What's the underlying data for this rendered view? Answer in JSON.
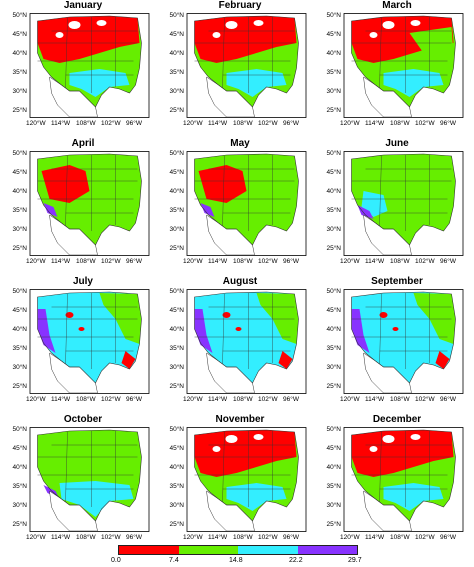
{
  "panels": [
    {
      "title": "January",
      "dominant": "red"
    },
    {
      "title": "February",
      "dominant": "red"
    },
    {
      "title": "March",
      "dominant": "red"
    },
    {
      "title": "April",
      "dominant": "green"
    },
    {
      "title": "May",
      "dominant": "green"
    },
    {
      "title": "June",
      "dominant": "green"
    },
    {
      "title": "July",
      "dominant": "cyan"
    },
    {
      "title": "August",
      "dominant": "cyan"
    },
    {
      "title": "September",
      "dominant": "cyan"
    },
    {
      "title": "October",
      "dominant": "green"
    },
    {
      "title": "November",
      "dominant": "red"
    },
    {
      "title": "December",
      "dominant": "red"
    }
  ],
  "lat_labels": [
    "50°N",
    "45°N",
    "40°N",
    "35°N",
    "30°N",
    "25°N"
  ],
  "lon_labels": [
    "120°W",
    "114°W",
    "108°W",
    "102°W",
    "96°W"
  ],
  "colorbar": {
    "colors": [
      "#ff0000",
      "#66ee00",
      "#33eeff",
      "#8833ff"
    ],
    "ticks": [
      "0.0",
      "7.4",
      "14.8",
      "22.2",
      "29.7"
    ]
  },
  "palette": {
    "red": "#ff0000",
    "green": "#66ee00",
    "cyan": "#33eeff",
    "purple": "#8833ff",
    "snow": "#ffffff",
    "border": "#333333"
  }
}
